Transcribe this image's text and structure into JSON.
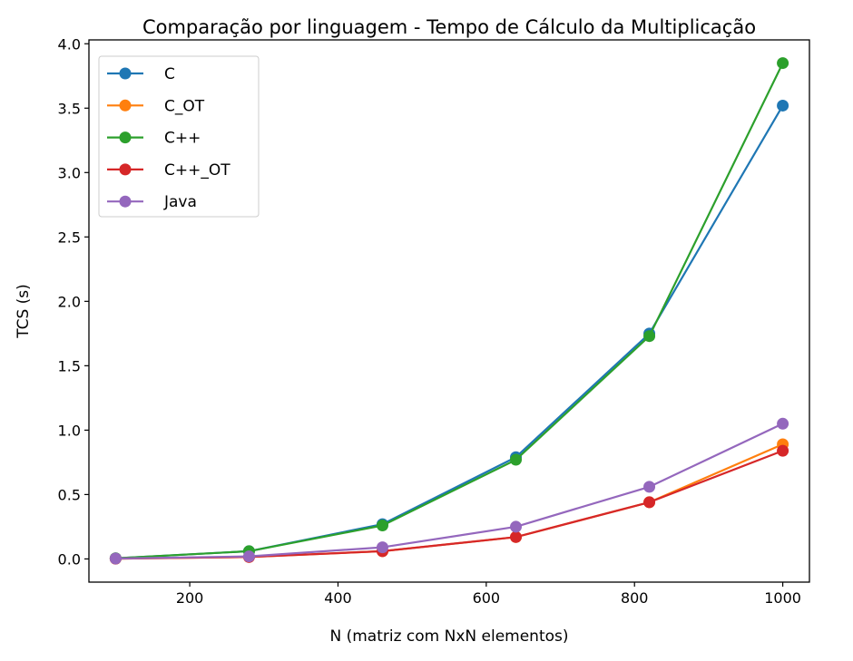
{
  "chart_data": {
    "type": "line",
    "title": "Comparação por linguagem - Tempo de Cálculo da Multiplicação",
    "xlabel": "N (matriz com NxN elementos)",
    "ylabel": "TCS (s)",
    "xlim": [
      64,
      1036
    ],
    "ylim": [
      -0.18,
      4.03
    ],
    "xticks": [
      200,
      400,
      600,
      800,
      1000
    ],
    "yticks": [
      0.0,
      0.5,
      1.0,
      1.5,
      2.0,
      2.5,
      3.0,
      3.5,
      4.0
    ],
    "xtick_labels": [
      "200",
      "400",
      "600",
      "800",
      "1000"
    ],
    "ytick_labels": [
      "0.0",
      "0.5",
      "1.0",
      "1.5",
      "2.0",
      "2.5",
      "3.0",
      "3.5",
      "4.0"
    ],
    "grid": false,
    "legend_position": "top-left",
    "x": [
      100,
      280,
      460,
      640,
      820,
      1000
    ],
    "series": [
      {
        "name": "C",
        "color": "#1f77b4",
        "values": [
          0.005,
          0.06,
          0.27,
          0.79,
          1.75,
          3.52
        ]
      },
      {
        "name": "C_OT",
        "color": "#ff7f0e",
        "values": [
          0.002,
          0.015,
          0.06,
          0.17,
          0.44,
          0.89
        ]
      },
      {
        "name": "C++",
        "color": "#2ca02c",
        "values": [
          0.005,
          0.06,
          0.26,
          0.77,
          1.73,
          3.85
        ]
      },
      {
        "name": "C++_OT",
        "color": "#d62728",
        "values": [
          0.002,
          0.015,
          0.06,
          0.17,
          0.44,
          0.84
        ]
      },
      {
        "name": "Java",
        "color": "#9467bd",
        "values": [
          0.003,
          0.02,
          0.09,
          0.25,
          0.56,
          1.05
        ]
      }
    ]
  }
}
